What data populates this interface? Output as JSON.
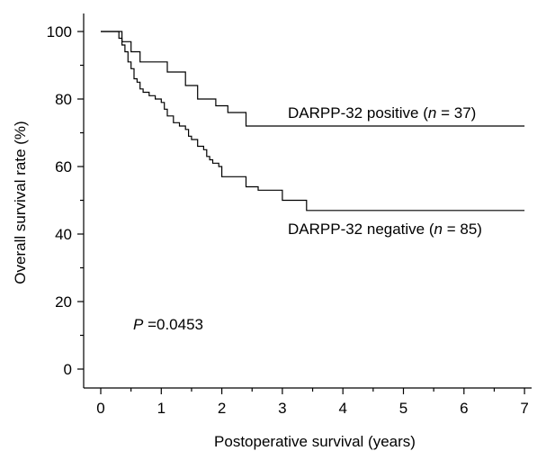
{
  "chart_data": {
    "type": "line",
    "subtype": "kaplan-meier",
    "xlabel": "Postoperative survival (years)",
    "ylabel": "Overall survival rate (%)",
    "xlim": [
      0,
      7
    ],
    "ylim": [
      0,
      100
    ],
    "xticks": [
      0,
      1,
      2,
      3,
      4,
      5,
      6,
      7
    ],
    "yticks": [
      0,
      20,
      40,
      60,
      80,
      100
    ],
    "grid": false,
    "series": [
      {
        "name": "DARPP-32 positive",
        "n": "37",
        "x": [
          0,
          0.3,
          0.35,
          0.5,
          0.65,
          1.1,
          1.4,
          1.6,
          1.9,
          2.1,
          2.4,
          7
        ],
        "y": [
          100,
          100,
          97,
          94,
          91,
          88,
          84,
          80,
          78,
          76,
          72,
          72
        ]
      },
      {
        "name": "DARPP-32 negative",
        "n": "85",
        "x": [
          0,
          0.25,
          0.3,
          0.35,
          0.4,
          0.45,
          0.5,
          0.55,
          0.6,
          0.65,
          0.7,
          0.8,
          0.9,
          1.0,
          1.05,
          1.1,
          1.2,
          1.3,
          1.4,
          1.45,
          1.5,
          1.6,
          1.7,
          1.75,
          1.8,
          1.85,
          1.95,
          2.0,
          2.4,
          2.6,
          3.0,
          3.4,
          7
        ],
        "y": [
          100,
          100,
          98,
          96,
          94,
          91,
          89,
          86,
          85,
          83,
          82,
          81,
          80,
          79,
          77,
          75,
          73,
          72,
          71,
          69,
          68,
          66,
          65,
          63,
          62,
          61,
          60,
          57,
          54,
          53,
          50,
          47,
          47
        ]
      }
    ],
    "annotations": [
      {
        "id": "pos_label",
        "prefix": "DARPP-32 positive (",
        "italic": "n",
        "suffix": " = 37)"
      },
      {
        "id": "neg_label",
        "prefix": "DARPP-32 negative (",
        "italic": "n",
        "suffix": " = 85)"
      },
      {
        "id": "pvalue",
        "italic": "P",
        "suffix": " =0.0453"
      }
    ]
  }
}
